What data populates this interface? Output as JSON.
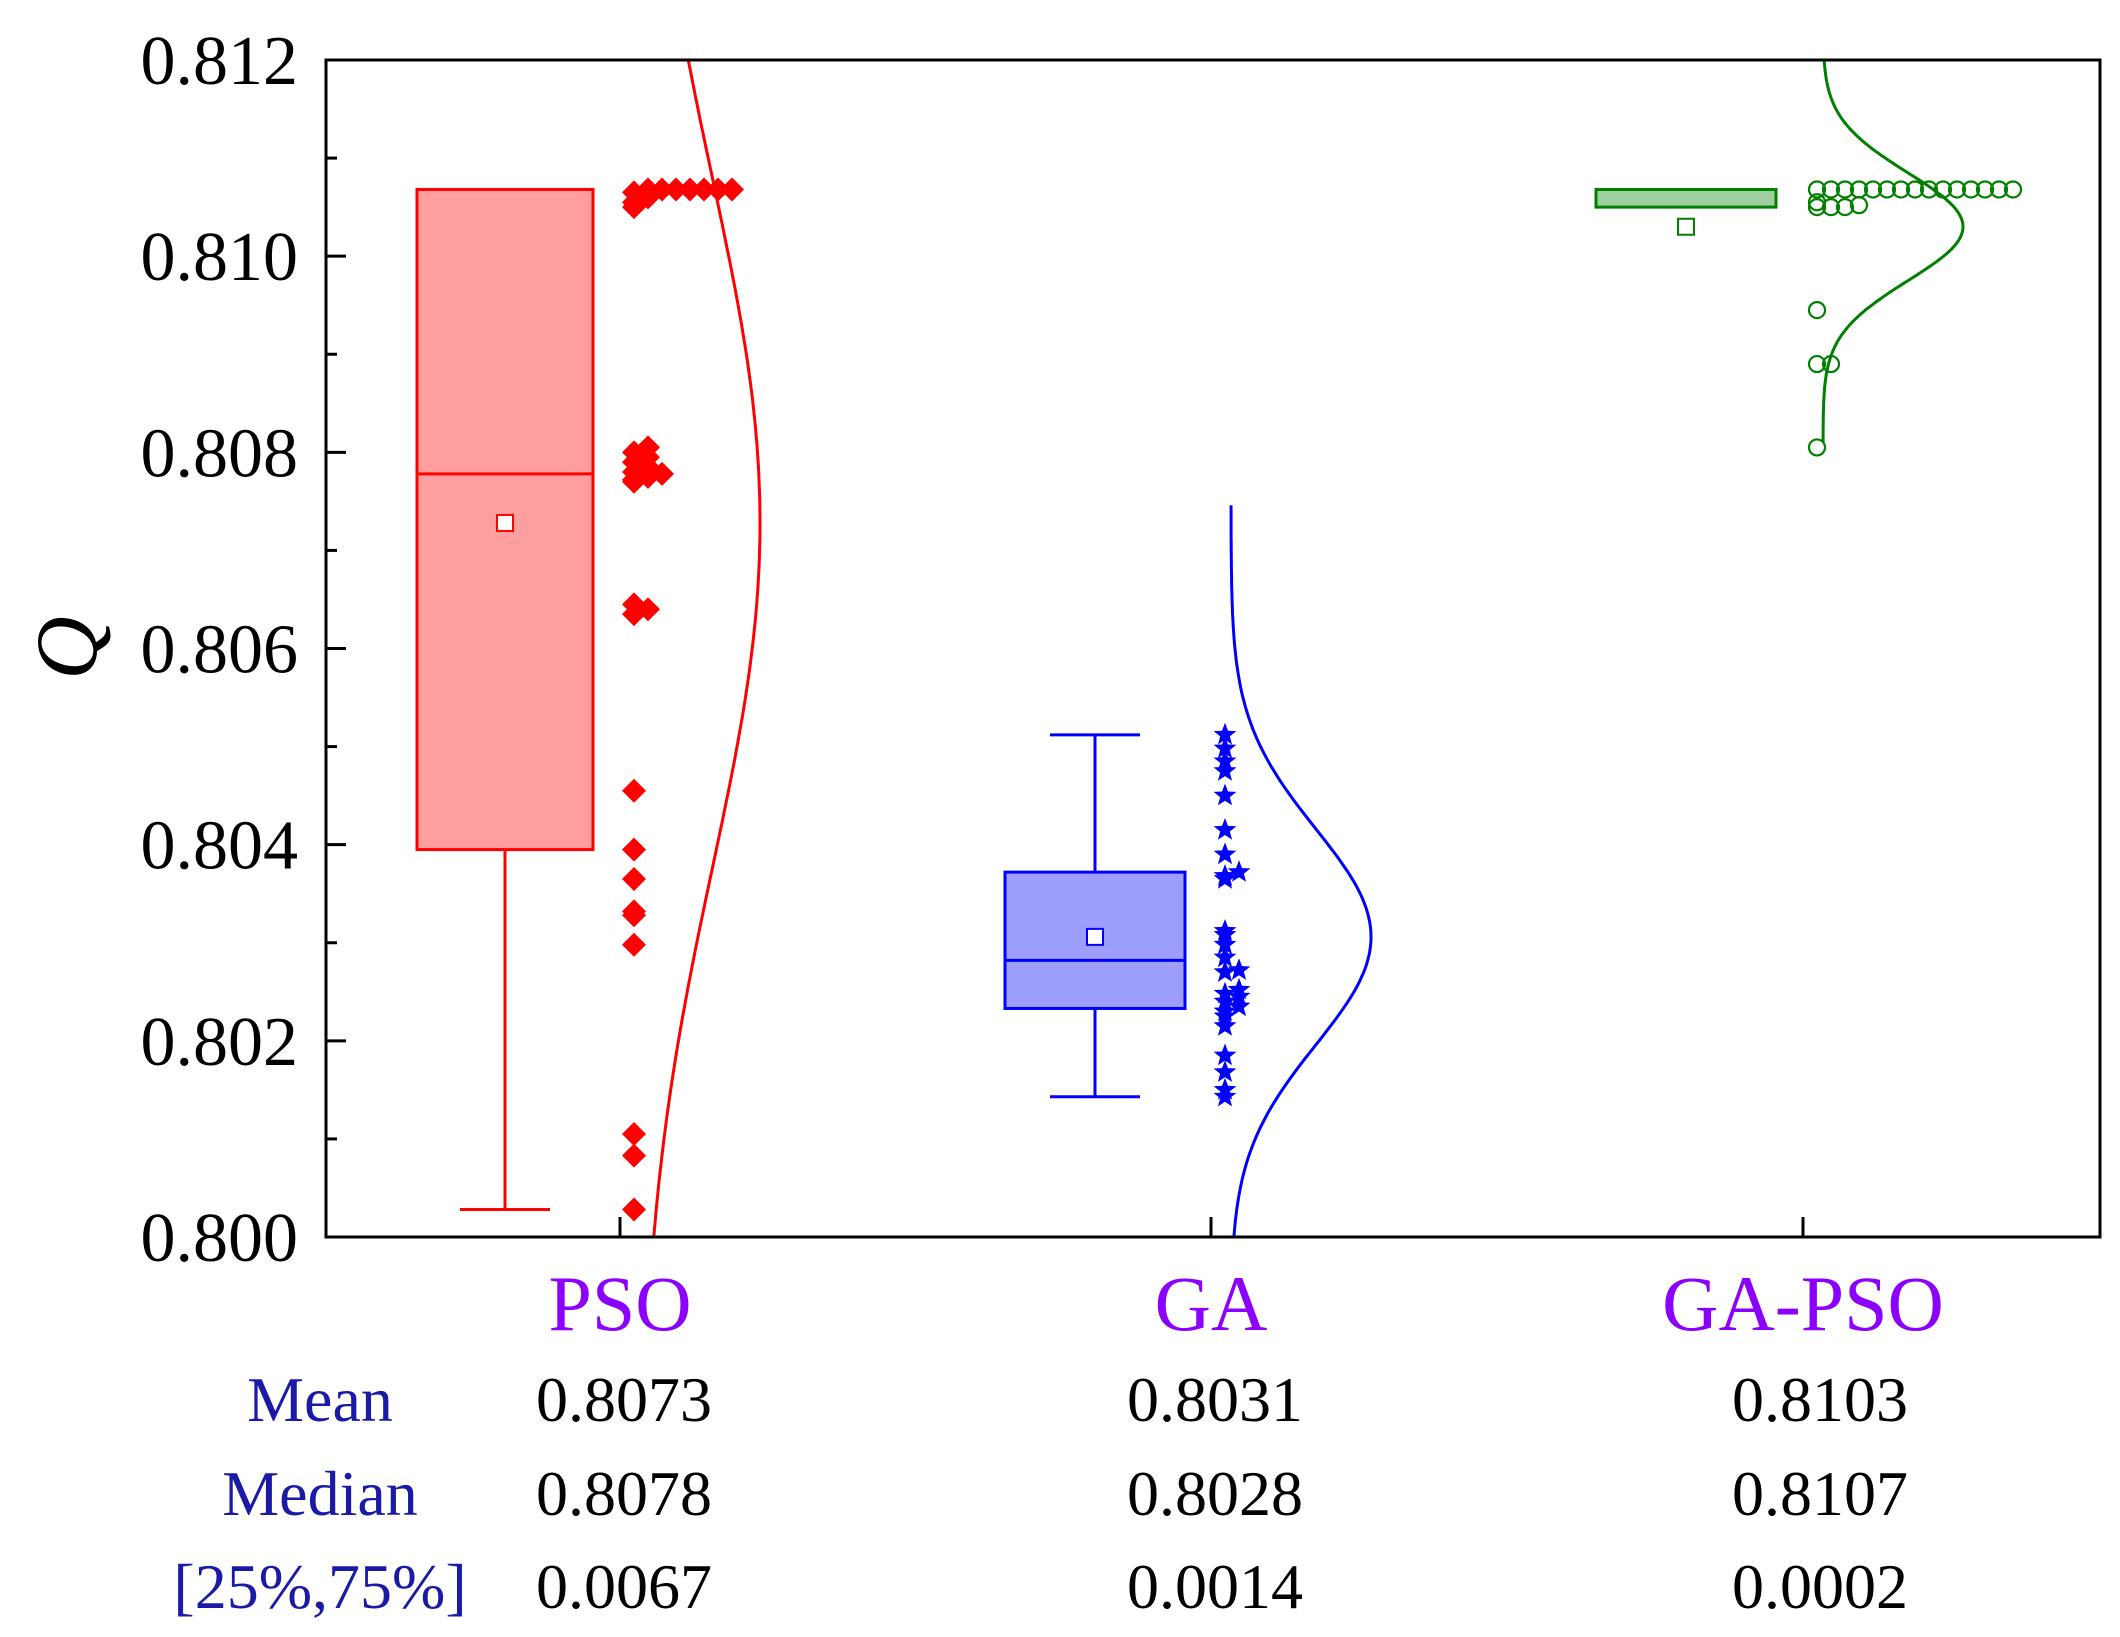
{
  "chart_data": {
    "type": "box",
    "ylabel": "Q",
    "xlabel": "",
    "ylim": [
      0.8,
      0.812
    ],
    "yticks": [
      "0.800",
      "0.802",
      "0.804",
      "0.806",
      "0.808",
      "0.810",
      "0.812"
    ],
    "categories": [
      "PSO",
      "GA",
      "GA-PSO"
    ],
    "colors": {
      "PSO": "#ff0000",
      "GA": "#0000ff",
      "GA-PSO": "#008000",
      "category_label": "#8b00ff",
      "stat_label": "#1a1aa6"
    },
    "series": [
      {
        "name": "PSO",
        "marker": "diamond",
        "box": {
          "whisker_low": 0.80028,
          "q1": 0.80395,
          "median": 0.80778,
          "q3": 0.81068,
          "whisker_high": 0.81068,
          "mean": 0.80728
        },
        "curve": {
          "mean": 0.80728,
          "sd": 0.0035
        },
        "points": [
          0.80028,
          0.80083,
          0.80105,
          0.80298,
          0.80328,
          0.80332,
          0.80365,
          0.80395,
          0.80455,
          0.80635,
          0.8064,
          0.80645,
          0.8077,
          0.80772,
          0.80775,
          0.80778,
          0.8078,
          0.80785,
          0.8079,
          0.80795,
          0.808,
          0.80805,
          0.8105,
          0.81055,
          0.8106,
          0.81065,
          0.81068,
          0.81068,
          0.81068,
          0.81068,
          0.81068,
          0.81068,
          0.81068
        ]
      },
      {
        "name": "GA",
        "marker": "star",
        "box": {
          "whisker_low": 0.80143,
          "q1": 0.80233,
          "median": 0.80282,
          "q3": 0.80372,
          "whisker_high": 0.80512,
          "mean": 0.80306
        },
        "curve": {
          "mean": 0.80306,
          "sd": 0.0011
        },
        "points": [
          0.80143,
          0.8015,
          0.80168,
          0.80185,
          0.80215,
          0.80225,
          0.8023,
          0.80235,
          0.8024,
          0.80245,
          0.80248,
          0.80252,
          0.8027,
          0.80272,
          0.80285,
          0.80298,
          0.80308,
          0.80312,
          0.80365,
          0.80368,
          0.80372,
          0.8039,
          0.80415,
          0.8045,
          0.80475,
          0.80485,
          0.80498,
          0.80512
        ]
      },
      {
        "name": "GA-PSO",
        "marker": "circle",
        "box": {
          "whisker_low": 0.8105,
          "q1": 0.8105,
          "median": 0.81068,
          "q3": 0.81068,
          "whisker_high": 0.81068,
          "mean": 0.8103
        },
        "curve": {
          "mean": 0.8103,
          "sd": 0.00055
        },
        "points": [
          0.80805,
          0.8089,
          0.8089,
          0.80945,
          0.8105,
          0.8105,
          0.8105,
          0.81052,
          0.81055,
          0.81068,
          0.81068,
          0.81068,
          0.81068,
          0.81068,
          0.81068,
          0.81068,
          0.81068,
          0.81068,
          0.81068,
          0.81068,
          0.81068,
          0.81068,
          0.81068,
          0.81068
        ]
      }
    ],
    "stats_table": {
      "rows": [
        {
          "label": "Mean",
          "values": [
            "0.8073",
            "0.8031",
            "0.8103"
          ]
        },
        {
          "label": "Median",
          "values": [
            "0.8078",
            "0.8028",
            "0.8107"
          ]
        },
        {
          "label": "[25%,75%]",
          "values": [
            "0.0067",
            "0.0014",
            "0.0002"
          ]
        }
      ]
    }
  }
}
